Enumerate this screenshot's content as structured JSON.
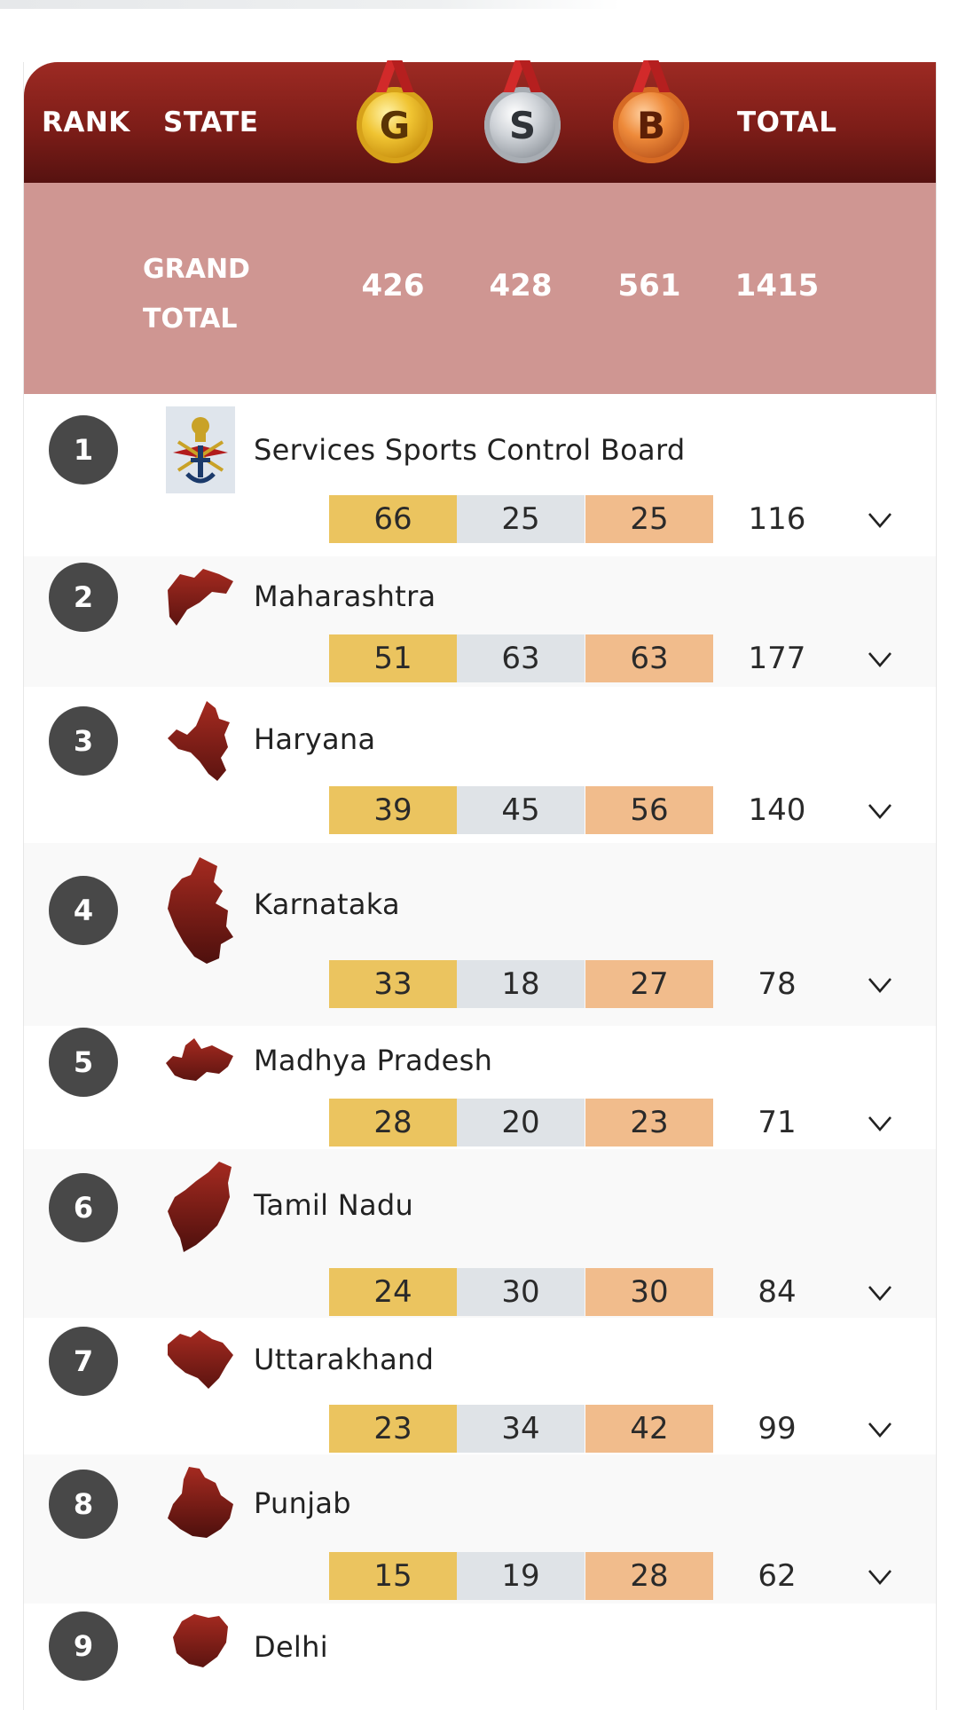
{
  "header": {
    "rank_label": "RANK",
    "state_label": "STATE",
    "gold_letter": "G",
    "silver_letter": "S",
    "bronze_letter": "B",
    "total_label": "TOTAL"
  },
  "grand_total": {
    "label_line1": "GRAND",
    "label_line2": "TOTAL",
    "gold": "426",
    "silver": "428",
    "bronze": "561",
    "total": "1415"
  },
  "rows": [
    {
      "rank": "1",
      "state": "Services Sports Control Board",
      "gold": "66",
      "silver": "25",
      "bronze": "25",
      "total": "116",
      "icon": "services-emblem-icon"
    },
    {
      "rank": "2",
      "state": "Maharashtra",
      "gold": "51",
      "silver": "63",
      "bronze": "63",
      "total": "177",
      "icon": "maharashtra-map-icon"
    },
    {
      "rank": "3",
      "state": "Haryana",
      "gold": "39",
      "silver": "45",
      "bronze": "56",
      "total": "140",
      "icon": "haryana-map-icon"
    },
    {
      "rank": "4",
      "state": "Karnataka",
      "gold": "33",
      "silver": "18",
      "bronze": "27",
      "total": "78",
      "icon": "karnataka-map-icon"
    },
    {
      "rank": "5",
      "state": "Madhya Pradesh",
      "gold": "28",
      "silver": "20",
      "bronze": "23",
      "total": "71",
      "icon": "madhya-pradesh-map-icon"
    },
    {
      "rank": "6",
      "state": "Tamil Nadu",
      "gold": "24",
      "silver": "30",
      "bronze": "30",
      "total": "84",
      "icon": "tamil-nadu-map-icon"
    },
    {
      "rank": "7",
      "state": "Uttarakhand",
      "gold": "23",
      "silver": "34",
      "bronze": "42",
      "total": "99",
      "icon": "uttarakhand-map-icon"
    },
    {
      "rank": "8",
      "state": "Punjab",
      "gold": "15",
      "silver": "19",
      "bronze": "28",
      "total": "62",
      "icon": "punjab-map-icon"
    },
    {
      "rank": "9",
      "state": "Delhi",
      "icon": "delhi-map-icon"
    }
  ],
  "colors": {
    "header_red": "#7d1d18",
    "grand_total_bg": "#cf9692",
    "gold_cell": "#ebc45f",
    "silver_cell": "#dfe3e7",
    "bronze_cell": "#f1bc8c",
    "rank_badge": "#484848",
    "map_red": "#8a1f18"
  }
}
